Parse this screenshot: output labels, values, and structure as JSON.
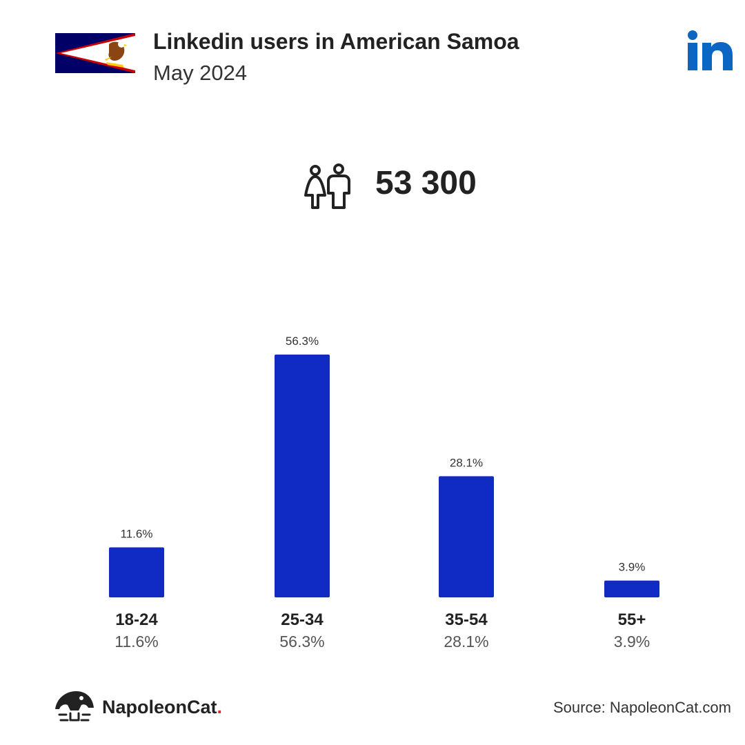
{
  "header": {
    "title": "Linkedin users in American Samoa",
    "subtitle": "May 2024",
    "flag_icon": "american-samoa-flag",
    "platform_icon": "linkedin-logo-icon"
  },
  "total": {
    "icon": "users-icon",
    "value": "53 300"
  },
  "colors": {
    "bar": "#0f2bc4",
    "linkedin": "#0a66c2",
    "flag_blue": "#000066",
    "flag_red": "#cc0000",
    "brand_dot": "#e3262f"
  },
  "chart_data": {
    "type": "bar",
    "categories": [
      "18-24",
      "25-34",
      "35-54",
      "55+"
    ],
    "values": [
      11.6,
      56.3,
      28.1,
      3.9
    ],
    "value_labels": [
      "11.6%",
      "56.3%",
      "28.1%",
      "3.9%"
    ],
    "ylim": [
      0,
      56.3
    ],
    "grid": false
  },
  "footer": {
    "brand_main": "NapoleonCat",
    "brand_dot": ".",
    "brand_icon": "napoleoncat-logo-icon",
    "source": "Source: NapoleonCat.com"
  }
}
